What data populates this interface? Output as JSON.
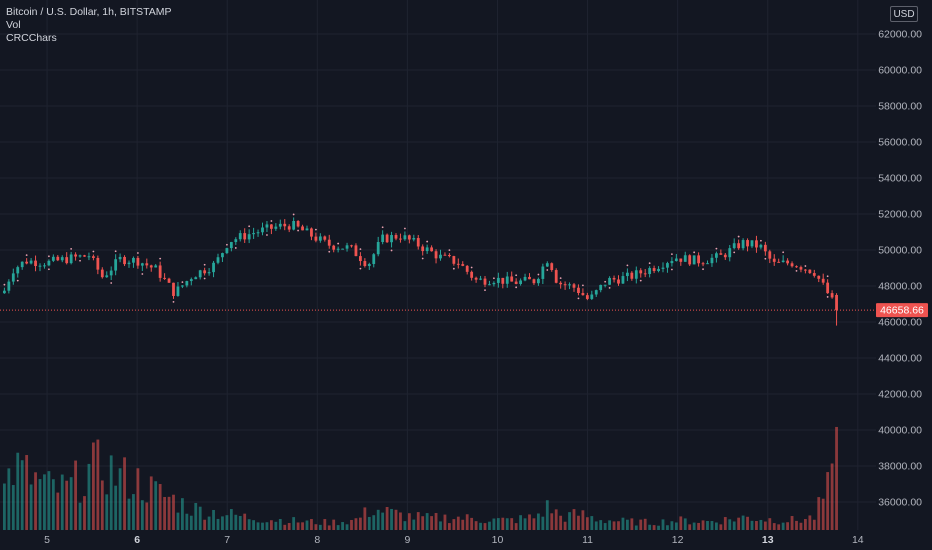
{
  "legend": {
    "symbol": "Bitcoin / U.S. Dollar, 1h, BITSTAMP",
    "indicator_1": "Vol",
    "indicator_2": "CRCChars"
  },
  "currency_button": "USD",
  "last_price_label": "46658.66",
  "colors": {
    "background": "#131722",
    "grid": "#1f2330",
    "up": "#26a69a",
    "down": "#ef5350",
    "axis_text": "#b2b5be",
    "price_line": "#ef5350",
    "marker": "#e8a0b0"
  },
  "chart_data": {
    "type": "candlestick",
    "symbol": "Bitcoin / U.S. Dollar",
    "interval": "1h",
    "exchange": "BITSTAMP",
    "currency": "USD",
    "ylim": [
      35000,
      63000
    ],
    "y_ticks": [
      "62000.00",
      "60000.00",
      "58000.00",
      "56000.00",
      "54000.00",
      "52000.00",
      "50000.00",
      "48000.00",
      "46000.00",
      "44000.00",
      "42000.00",
      "40000.00",
      "38000.00",
      "36000.00"
    ],
    "x_ticks": [
      {
        "label": "5",
        "bold": false
      },
      {
        "label": "6",
        "bold": true
      },
      {
        "label": "7",
        "bold": false
      },
      {
        "label": "8",
        "bold": false
      },
      {
        "label": "9",
        "bold": false
      },
      {
        "label": "10",
        "bold": false
      },
      {
        "label": "11",
        "bold": false
      },
      {
        "label": "12",
        "bold": false
      },
      {
        "label": "13",
        "bold": true
      },
      {
        "label": "14",
        "bold": false
      }
    ],
    "last_price": 46658.66,
    "close_path": [
      [
        4.5,
        47600
      ],
      [
        4.6,
        48900
      ],
      [
        4.75,
        49400
      ],
      [
        5.0,
        49300
      ],
      [
        5.2,
        49500
      ],
      [
        5.45,
        49700
      ],
      [
        5.6,
        48500
      ],
      [
        5.8,
        49500
      ],
      [
        6.0,
        49400
      ],
      [
        6.2,
        48900
      ],
      [
        6.4,
        47600
      ],
      [
        6.6,
        48600
      ],
      [
        6.85,
        49200
      ],
      [
        7.0,
        50500
      ],
      [
        7.3,
        51000
      ],
      [
        7.55,
        51300
      ],
      [
        7.7,
        51400
      ],
      [
        7.85,
        51000
      ],
      [
        8.1,
        50300
      ],
      [
        8.35,
        50100
      ],
      [
        8.55,
        49200
      ],
      [
        8.7,
        50600
      ],
      [
        8.9,
        50800
      ],
      [
        9.1,
        50300
      ],
      [
        9.35,
        49600
      ],
      [
        9.55,
        49300
      ],
      [
        9.75,
        48300
      ],
      [
        9.95,
        48400
      ],
      [
        10.15,
        48200
      ],
      [
        10.4,
        48300
      ],
      [
        10.55,
        49600
      ],
      [
        10.65,
        48200
      ],
      [
        10.85,
        47900
      ],
      [
        11.0,
        47200
      ],
      [
        11.2,
        48300
      ],
      [
        11.45,
        48500
      ],
      [
        11.7,
        49000
      ],
      [
        11.95,
        49600
      ],
      [
        12.2,
        49400
      ],
      [
        12.45,
        49600
      ],
      [
        12.7,
        50400
      ],
      [
        12.9,
        50200
      ],
      [
        13.05,
        49200
      ],
      [
        13.25,
        49300
      ],
      [
        13.5,
        48800
      ],
      [
        13.65,
        47600
      ],
      [
        13.75,
        46658.66
      ]
    ],
    "volume_path": [
      [
        4.5,
        36
      ],
      [
        4.6,
        60
      ],
      [
        4.8,
        50
      ],
      [
        5.0,
        40
      ],
      [
        5.2,
        38
      ],
      [
        5.45,
        55
      ],
      [
        5.6,
        60
      ],
      [
        5.8,
        50
      ],
      [
        6.0,
        45
      ],
      [
        6.2,
        35
      ],
      [
        6.4,
        28
      ],
      [
        6.6,
        20
      ],
      [
        6.9,
        16
      ],
      [
        7.2,
        12
      ],
      [
        7.5,
        10
      ],
      [
        7.8,
        8
      ],
      [
        8.1,
        7
      ],
      [
        8.4,
        9
      ],
      [
        8.6,
        20
      ],
      [
        8.9,
        14
      ],
      [
        9.2,
        11
      ],
      [
        9.5,
        12
      ],
      [
        9.8,
        10
      ],
      [
        10.1,
        9
      ],
      [
        10.4,
        12
      ],
      [
        10.55,
        22
      ],
      [
        10.7,
        12
      ],
      [
        10.9,
        15
      ],
      [
        11.1,
        10
      ],
      [
        11.4,
        8
      ],
      [
        11.7,
        7
      ],
      [
        12.0,
        9
      ],
      [
        12.3,
        8
      ],
      [
        12.55,
        10
      ],
      [
        12.75,
        12
      ],
      [
        13.0,
        10
      ],
      [
        13.3,
        9
      ],
      [
        13.5,
        12
      ],
      [
        13.6,
        30
      ],
      [
        13.7,
        45
      ],
      [
        13.78,
        92
      ]
    ]
  }
}
